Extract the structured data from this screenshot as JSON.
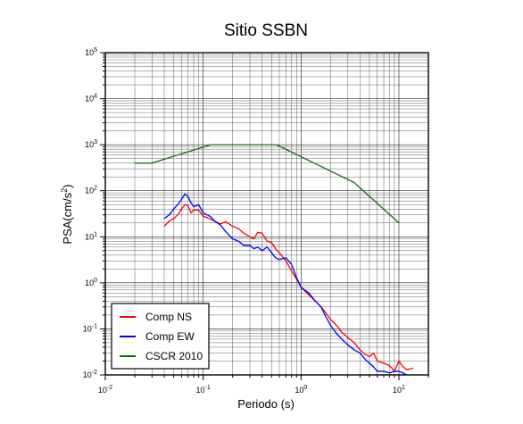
{
  "chart_data": {
    "type": "line",
    "title": "Sitio SSBN",
    "xlabel": "Periodo (s)",
    "ylabel_prefix": "PSA(cm/s",
    "ylabel_exp": "2",
    "ylabel_suffix": ")",
    "xscale": "log",
    "yscale": "log",
    "xlim": [
      0.01,
      20
    ],
    "ylim": [
      0.01,
      100000
    ],
    "grid": true,
    "legend_position": "bottom-left",
    "x_ticks": [
      {
        "base": "10",
        "exp": "-2",
        "value": 0.01
      },
      {
        "base": "10",
        "exp": "-1",
        "value": 0.1
      },
      {
        "base": "10",
        "exp": "0",
        "value": 1
      },
      {
        "base": "10",
        "exp": "1",
        "value": 10
      }
    ],
    "y_ticks": [
      {
        "base": "10",
        "exp": "-2",
        "value": 0.01
      },
      {
        "base": "10",
        "exp": "-1",
        "value": 0.1
      },
      {
        "base": "10",
        "exp": "0",
        "value": 1
      },
      {
        "base": "10",
        "exp": "1",
        "value": 10
      },
      {
        "base": "10",
        "exp": "2",
        "value": 100
      },
      {
        "base": "10",
        "exp": "3",
        "value": 1000
      },
      {
        "base": "10",
        "exp": "4",
        "value": 10000
      },
      {
        "base": "10",
        "exp": "5",
        "value": 100000
      }
    ],
    "series": [
      {
        "name": "Comp NS",
        "color": "#ff0000",
        "x": [
          0.04,
          0.045,
          0.05,
          0.055,
          0.06,
          0.065,
          0.07,
          0.075,
          0.08,
          0.09,
          0.1,
          0.11,
          0.12,
          0.13,
          0.15,
          0.17,
          0.2,
          0.23,
          0.26,
          0.3,
          0.33,
          0.36,
          0.4,
          0.45,
          0.5,
          0.55,
          0.6,
          0.7,
          0.8,
          0.9,
          1.0,
          1.2,
          1.4,
          1.6,
          1.8,
          2.0,
          2.3,
          2.6,
          3.0,
          3.5,
          4.0,
          4.5,
          5.0,
          5.5,
          6.0,
          7.0,
          8.0,
          9.0,
          10.0,
          11.0,
          12.0,
          14.0
        ],
        "y": [
          17,
          22,
          25,
          30,
          40,
          50,
          48,
          33,
          38,
          38,
          28,
          26,
          24,
          22,
          19,
          21,
          17,
          15,
          12,
          10,
          9,
          12.5,
          12,
          8,
          7.5,
          5.5,
          4.5,
          3,
          1.8,
          1.2,
          0.8,
          0.55,
          0.4,
          0.3,
          0.22,
          0.16,
          0.12,
          0.085,
          0.065,
          0.05,
          0.035,
          0.028,
          0.025,
          0.03,
          0.02,
          0.018,
          0.016,
          0.012,
          0.02,
          0.015,
          0.013,
          0.014
        ]
      },
      {
        "name": "Comp EW",
        "color": "#0000ff",
        "x": [
          0.04,
          0.045,
          0.05,
          0.055,
          0.06,
          0.065,
          0.07,
          0.075,
          0.08,
          0.09,
          0.1,
          0.11,
          0.12,
          0.13,
          0.15,
          0.17,
          0.2,
          0.23,
          0.26,
          0.3,
          0.33,
          0.36,
          0.4,
          0.45,
          0.5,
          0.55,
          0.6,
          0.7,
          0.8,
          0.9,
          1.0,
          1.2,
          1.4,
          1.6,
          1.8,
          2.0,
          2.3,
          2.6,
          3.0,
          3.5,
          4.0,
          4.5,
          5.0,
          5.5,
          6.0,
          7.0,
          8.0,
          9.0,
          10.0,
          11.0,
          12.0
        ],
        "y": [
          25,
          30,
          40,
          50,
          65,
          85,
          75,
          55,
          45,
          50,
          33,
          30,
          27,
          22,
          18,
          13,
          9,
          8,
          6.5,
          6.5,
          5.5,
          6,
          5,
          6,
          4.5,
          3.5,
          3.2,
          3.5,
          2.5,
          1.3,
          0.8,
          0.6,
          0.4,
          0.3,
          0.18,
          0.12,
          0.08,
          0.06,
          0.045,
          0.035,
          0.03,
          0.022,
          0.018,
          0.015,
          0.012,
          0.012,
          0.011,
          0.012,
          0.012,
          0.011,
          0.01
        ]
      },
      {
        "name": "CSCR 2010",
        "color": "#1a6b1a",
        "x": [
          0.02,
          0.03,
          0.12,
          0.56,
          3.5,
          10.0
        ],
        "y": [
          400,
          400,
          1000,
          1000,
          150,
          20
        ]
      }
    ]
  }
}
